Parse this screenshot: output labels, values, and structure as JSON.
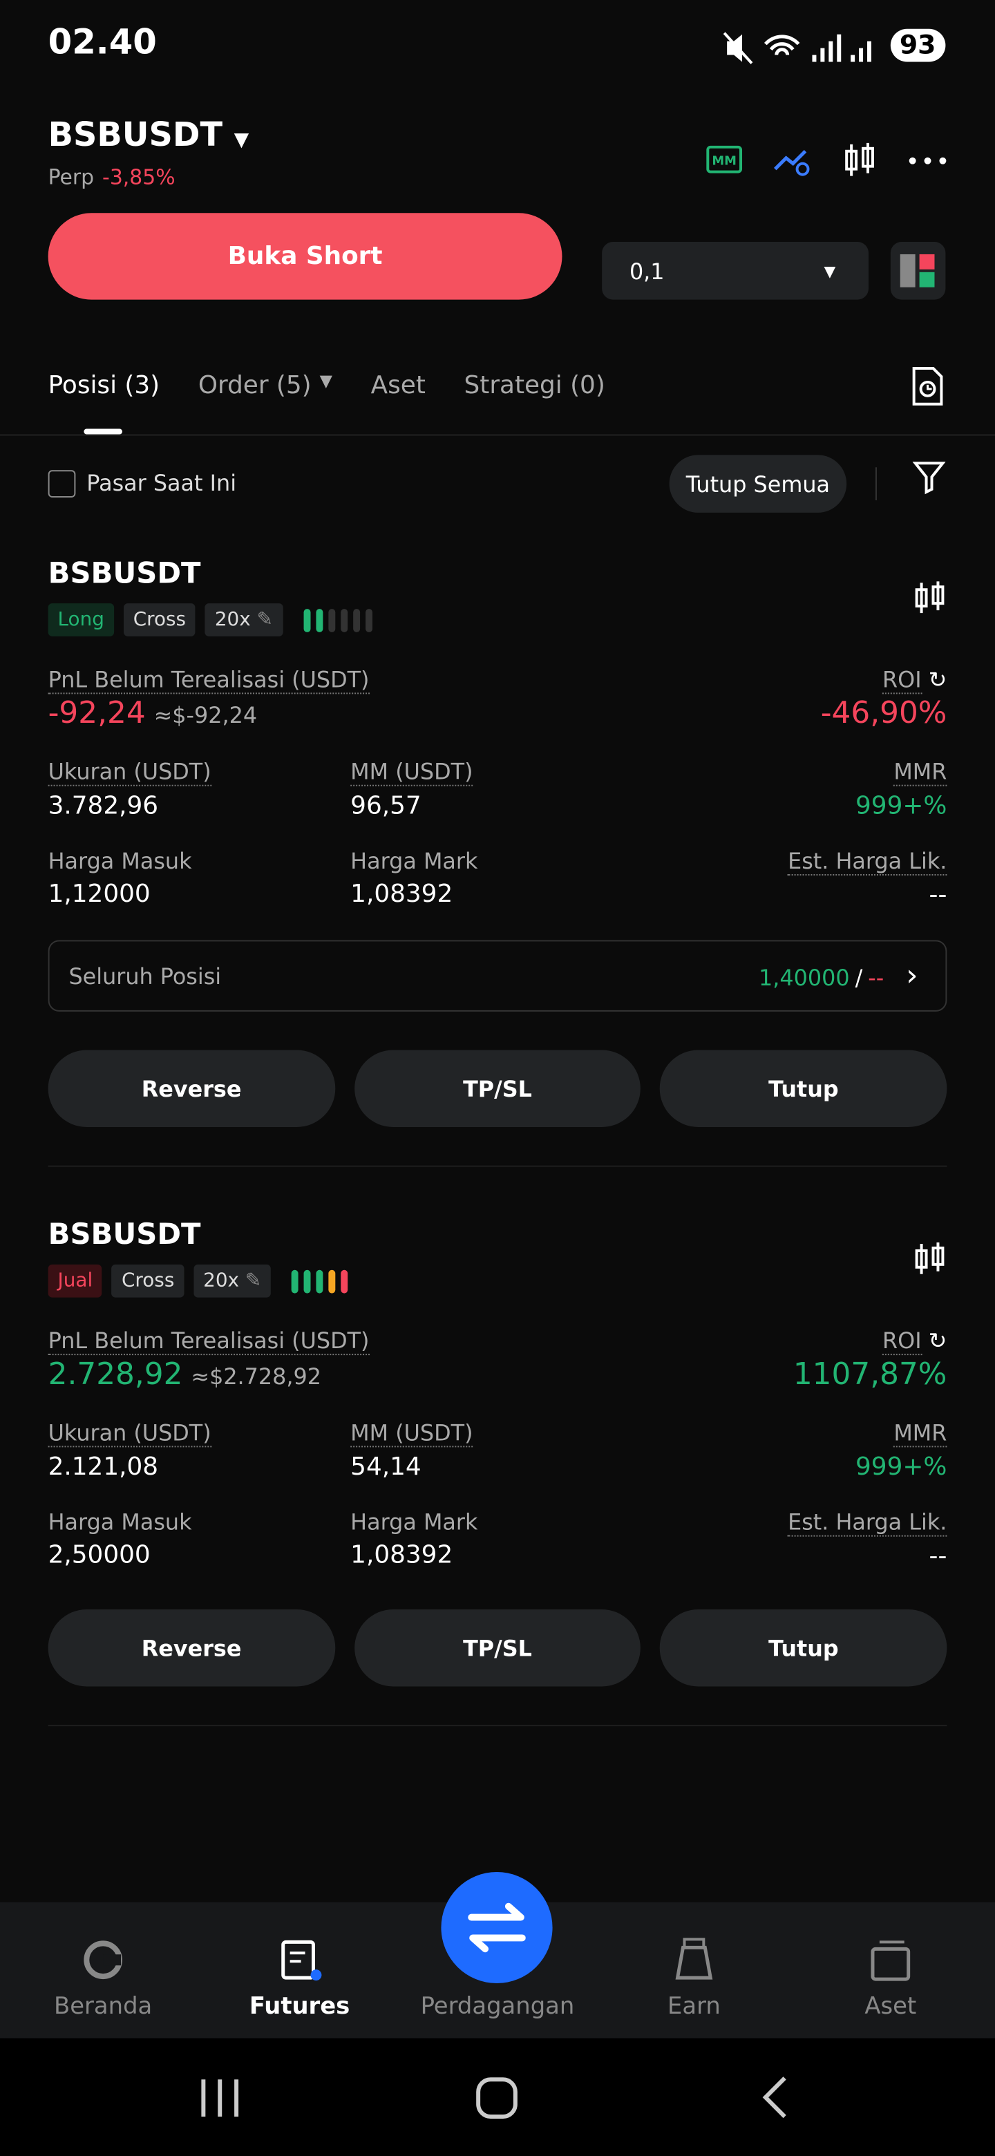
{
  "status_bar": {
    "time": "02.40",
    "battery": "93"
  },
  "header": {
    "symbol": "BSBUSDT",
    "type": "Perp",
    "change": "-3,85%",
    "action_button": "Buka Short",
    "quantity": "0,1"
  },
  "tabs": [
    "Posisi (3)",
    "Order (5)",
    "Aset",
    "Strategi (0)"
  ],
  "filter": {
    "checkbox_label": "Pasar Saat Ini",
    "close_all": "Tutup Semua"
  },
  "positions": [
    {
      "symbol": "BSBUSDT",
      "side": "Long",
      "margin": "Cross",
      "leverage": "20x",
      "pnl_label": "PnL Belum Terealisasi (USDT)",
      "pnl": "-92,24",
      "pnl_usd": "≈$-92,24",
      "roi_label": "ROI",
      "roi": "-46,90%",
      "size_label": "Ukuran (USDT)",
      "size": "3.782,96",
      "mm_label": "MM (USDT)",
      "mm": "96,57",
      "mmr_label": "MMR",
      "mmr": "999+%",
      "entry_label": "Harga Masuk",
      "entry": "1,12000",
      "mark_label": "Harga Mark",
      "mark": "1,08392",
      "liq_label": "Est. Harga Lik.",
      "liq": "--",
      "tpsl_label": "Seluruh Posisi",
      "tp": "1,40000",
      "tpsl_separator": "/",
      "sl": "--",
      "buttons": [
        "Reverse",
        "TP/SL",
        "Tutup"
      ]
    },
    {
      "symbol": "BSBUSDT",
      "side": "Jual",
      "margin": "Cross",
      "leverage": "20x",
      "pnl_label": "PnL Belum Terealisasi (USDT)",
      "pnl": "2.728,92",
      "pnl_usd": "≈$2.728,92",
      "roi_label": "ROI",
      "roi": "1107,87%",
      "size_label": "Ukuran (USDT)",
      "size": "2.121,08",
      "mm_label": "MM (USDT)",
      "mm": "54,14",
      "mmr_label": "MMR",
      "mmr": "999+%",
      "entry_label": "Harga Masuk",
      "entry": "2,50000",
      "mark_label": "Harga Mark",
      "mark": "1,08392",
      "liq_label": "Est. Harga Lik.",
      "liq": "--",
      "buttons": [
        "Reverse",
        "TP/SL",
        "Tutup"
      ]
    }
  ],
  "nav": [
    "Beranda",
    "Futures",
    "Perdagangan",
    "Earn",
    "Aset"
  ]
}
